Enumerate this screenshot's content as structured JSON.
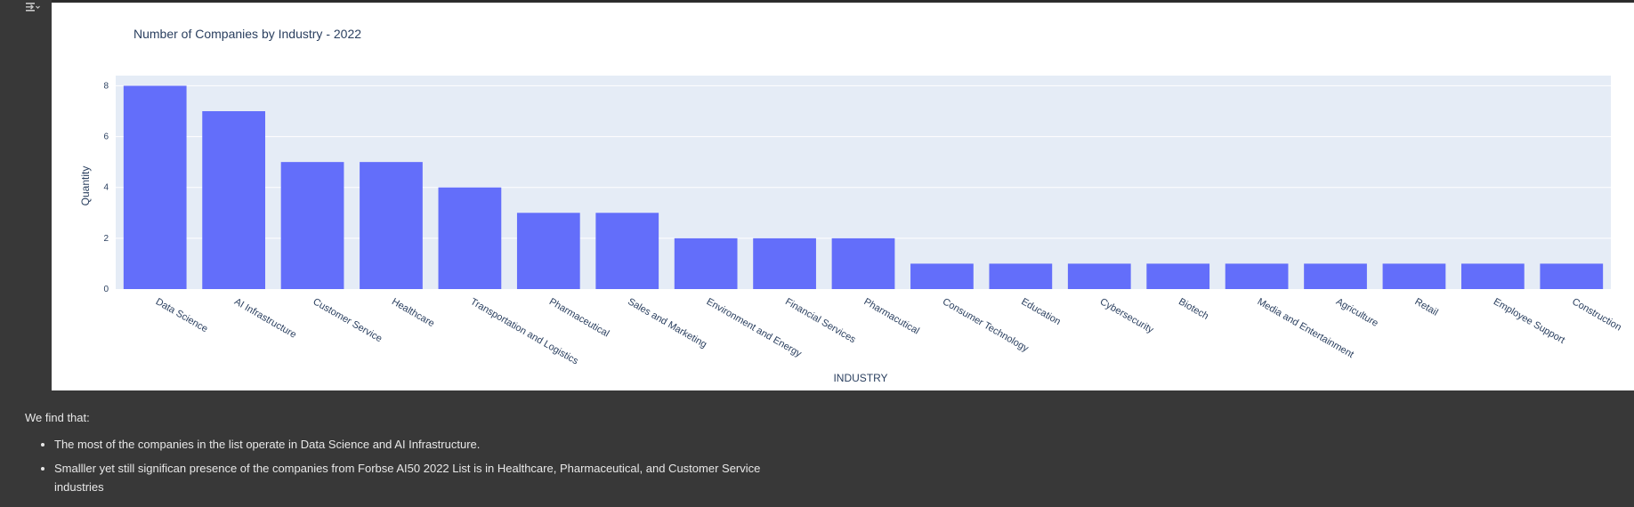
{
  "notebook": {
    "output_toggle_icon": "output-collapse-icon"
  },
  "chart_data": {
    "type": "bar",
    "title": "Number of Companies by Industry - 2022",
    "xlabel": "INDUSTRY",
    "ylabel": "Quantity",
    "categories": [
      "Data Science",
      "AI Infrastructure",
      "Customer Service",
      "Healthcare",
      "Transportation and Logistics",
      "Pharmaceutical",
      "Sales and Marketing",
      "Environment and Energy",
      "Financial Services",
      "Pharmacutical",
      "Consumer Technology",
      "Education",
      "Cybersecurity",
      "Biotech",
      "Media and Entertainment",
      "Agriculture",
      "Retail",
      "Employee Support",
      "Construction"
    ],
    "values": [
      8,
      7,
      5,
      5,
      4,
      3,
      3,
      2,
      2,
      2,
      1,
      1,
      1,
      1,
      1,
      1,
      1,
      1,
      1
    ],
    "ylim": [
      0,
      8.4
    ],
    "yticks": [
      0,
      2,
      4,
      6,
      8
    ],
    "grid": true,
    "bar_color": "#636efa",
    "plot_bg": "#e5ecf6"
  },
  "markdown": {
    "intro": "We find that:",
    "bullets": [
      "The most of the companies in the list operate in Data Science and AI Infrastructure.",
      "Smalller yet still significan presence of the companies from Forbse AI50 2022 List is in Healthcare, Pharmaceutical, and Customer Service industries"
    ]
  }
}
